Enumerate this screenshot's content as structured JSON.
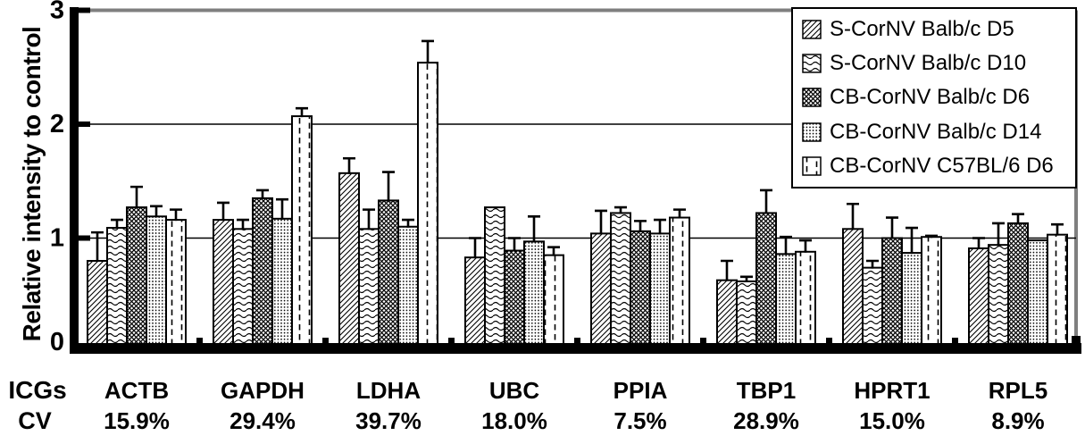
{
  "figure": {
    "colors": {
      "ink": "#000000",
      "frame_gray": "#7f7f7f",
      "background": "#ffffff"
    }
  },
  "chart_data": {
    "type": "bar",
    "title": "",
    "xlabel": "",
    "ylabel": "Relative intensity to control",
    "ylim": [
      0,
      3
    ],
    "yticks": [
      0,
      1,
      2,
      3
    ],
    "grid": "horizontal",
    "legend_position": "top-right",
    "row_labels": {
      "icgs": "ICGs",
      "cv": "CV"
    },
    "categories": [
      "ACTB",
      "GAPDH",
      "LDHA",
      "UBC",
      "PPIA",
      "TBP1",
      "HPRT1",
      "RPL5"
    ],
    "cv_values": [
      "15.9%",
      "29.4%",
      "39.7%",
      "18.0%",
      "7.5%",
      "28.9%",
      "15.0%",
      "8.9%"
    ],
    "series": [
      {
        "name": "S-CorNV Balb/c D5",
        "pattern": "diagonal-hatch",
        "values": [
          0.8,
          1.16,
          1.57,
          0.83,
          1.04,
          0.63,
          1.08,
          0.91
        ],
        "errors_plus": [
          0.25,
          0.15,
          0.13,
          0.17,
          0.2,
          0.17,
          0.22,
          0.09
        ]
      },
      {
        "name": "S-CorNV Balb/c D10",
        "pattern": "horizontal-wave",
        "values": [
          1.09,
          1.08,
          1.08,
          1.27,
          1.22,
          0.62,
          0.74,
          0.94
        ],
        "errors_plus": [
          0.07,
          0.08,
          0.17,
          0.0,
          0.05,
          0.04,
          0.06,
          0.19
        ]
      },
      {
        "name": "CB-CorNV Balb/c D6",
        "pattern": "dense-crosshatch",
        "values": [
          1.27,
          1.35,
          1.33,
          0.89,
          1.06,
          1.22,
          1.0,
          1.13
        ],
        "errors_plus": [
          0.18,
          0.07,
          0.25,
          0.11,
          0.09,
          0.2,
          0.18,
          0.08
        ]
      },
      {
        "name": "CB-CorNV Balb/c D14",
        "pattern": "fine-dots",
        "values": [
          1.19,
          1.17,
          1.1,
          0.97,
          1.04,
          0.86,
          0.87,
          0.98
        ],
        "errors_plus": [
          0.09,
          0.17,
          0.06,
          0.22,
          0.12,
          0.15,
          0.22,
          0.0
        ]
      },
      {
        "name": "CB-CorNV C57BL/6 D6",
        "pattern": "vertical-dash",
        "values": [
          1.16,
          2.07,
          2.54,
          0.85,
          1.18,
          0.88,
          1.01,
          1.03
        ],
        "errors_plus": [
          0.09,
          0.07,
          0.19,
          0.07,
          0.07,
          0.1,
          0.01,
          0.09
        ]
      }
    ]
  }
}
